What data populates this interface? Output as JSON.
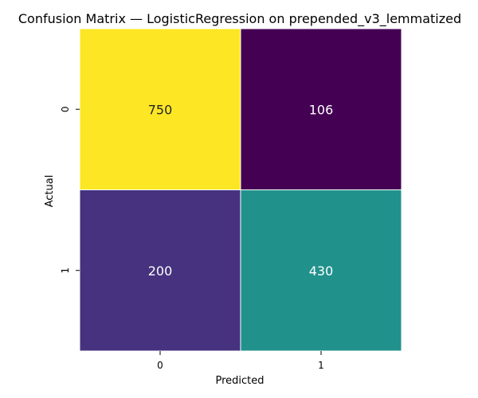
{
  "chart_data": {
    "type": "heatmap",
    "title": "Confusion Matrix — LogisticRegression on prepended_v3_lemmatized",
    "xlabel": "Predicted",
    "ylabel": "Actual",
    "x_categories": [
      "0",
      "1"
    ],
    "y_categories": [
      "0",
      "1"
    ],
    "values": [
      [
        750,
        106
      ],
      [
        200,
        430
      ]
    ],
    "colormap": "viridis",
    "annotations": true,
    "colorbar": false,
    "cell_colors": [
      [
        "#fde725",
        "#440154"
      ],
      [
        "#46327e",
        "#21918c"
      ]
    ],
    "text_colors": [
      [
        "#262626",
        "#ffffff"
      ],
      [
        "#ffffff",
        "#ffffff"
      ]
    ],
    "grid_line_color": "#ffffff"
  }
}
